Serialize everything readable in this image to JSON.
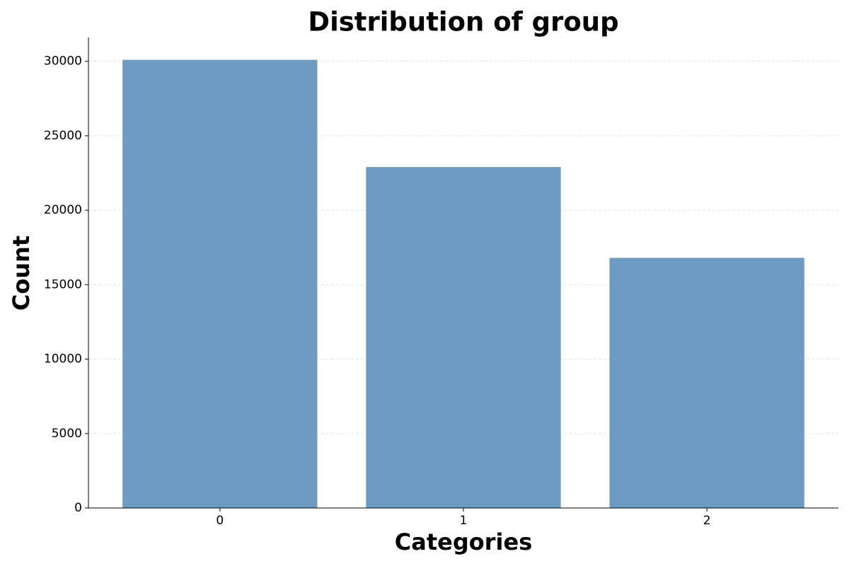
{
  "chart_data": {
    "type": "bar",
    "title": "Distribution of group",
    "x_label": "Categories",
    "y_label": "Count",
    "categories": [
      "0",
      "1",
      "2"
    ],
    "values": [
      30100,
      22900,
      16800
    ],
    "color": "#6b9bc3",
    "ylim": [
      0,
      31600
    ],
    "yticks": [
      0,
      5000,
      10000,
      15000,
      20000,
      25000,
      30000
    ],
    "grid": true
  }
}
